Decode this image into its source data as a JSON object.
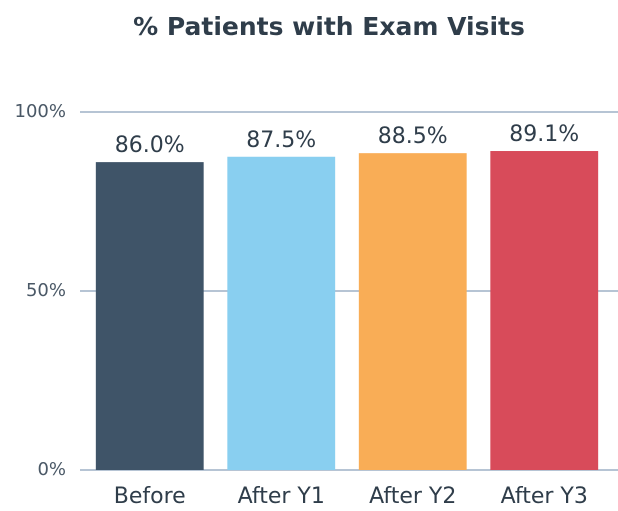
{
  "chart_data": {
    "type": "bar",
    "title": "% Patients with Exam Visits",
    "categories": [
      "Before",
      "After Y1",
      "After Y2",
      "After Y3"
    ],
    "values": [
      86.0,
      87.5,
      88.5,
      89.1
    ],
    "value_labels": [
      "86.0%",
      "87.5%",
      "88.5%",
      "89.1%"
    ],
    "colors": [
      "#3f5468",
      "#89cff0",
      "#f9ad56",
      "#d84b5a"
    ],
    "ylim": [
      0,
      100
    ],
    "yticks": [
      {
        "value": 0,
        "label": "0%"
      },
      {
        "value": 50,
        "label": "50%"
      },
      {
        "value": 100,
        "label": "100%"
      }
    ],
    "grid": true
  }
}
